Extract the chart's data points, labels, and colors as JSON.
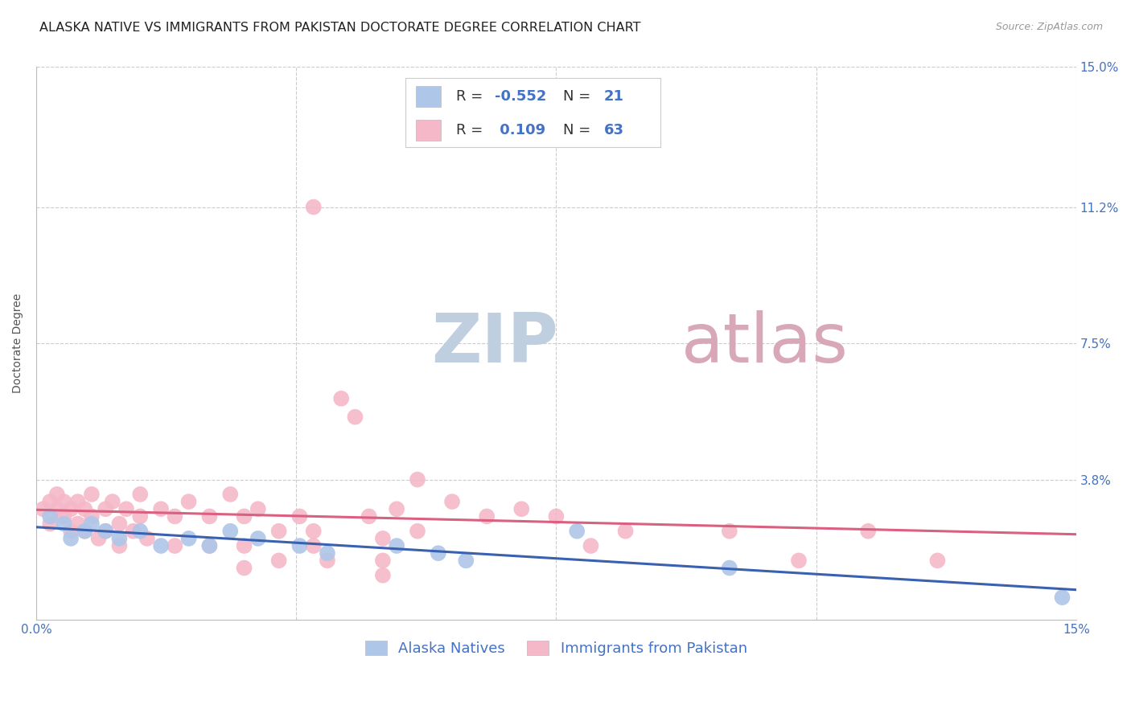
{
  "title": "ALASKA NATIVE VS IMMIGRANTS FROM PAKISTAN DOCTORATE DEGREE CORRELATION CHART",
  "source": "Source: ZipAtlas.com",
  "ylabel": "Doctorate Degree",
  "xlim": [
    0.0,
    0.15
  ],
  "ylim": [
    0.0,
    0.15
  ],
  "background_color": "#ffffff",
  "grid_color": "#cccccc",
  "alaska_color": "#aec6e8",
  "pakistan_color": "#f5b8c8",
  "alaska_line_color": "#3a60b0",
  "pakistan_line_color": "#d96080",
  "alaska_R": -0.552,
  "alaska_N": 21,
  "pakistan_R": 0.109,
  "pakistan_N": 63,
  "alaska_points": [
    [
      0.002,
      0.028
    ],
    [
      0.004,
      0.026
    ],
    [
      0.005,
      0.022
    ],
    [
      0.007,
      0.024
    ],
    [
      0.008,
      0.026
    ],
    [
      0.01,
      0.024
    ],
    [
      0.012,
      0.022
    ],
    [
      0.015,
      0.024
    ],
    [
      0.018,
      0.02
    ],
    [
      0.022,
      0.022
    ],
    [
      0.025,
      0.02
    ],
    [
      0.028,
      0.024
    ],
    [
      0.032,
      0.022
    ],
    [
      0.038,
      0.02
    ],
    [
      0.042,
      0.018
    ],
    [
      0.052,
      0.02
    ],
    [
      0.058,
      0.018
    ],
    [
      0.062,
      0.016
    ],
    [
      0.078,
      0.024
    ],
    [
      0.1,
      0.014
    ],
    [
      0.148,
      0.006
    ]
  ],
  "pakistan_points": [
    [
      0.001,
      0.03
    ],
    [
      0.002,
      0.032
    ],
    [
      0.002,
      0.026
    ],
    [
      0.003,
      0.034
    ],
    [
      0.003,
      0.03
    ],
    [
      0.004,
      0.028
    ],
    [
      0.004,
      0.032
    ],
    [
      0.005,
      0.03
    ],
    [
      0.005,
      0.024
    ],
    [
      0.006,
      0.032
    ],
    [
      0.006,
      0.026
    ],
    [
      0.007,
      0.03
    ],
    [
      0.007,
      0.024
    ],
    [
      0.008,
      0.034
    ],
    [
      0.008,
      0.028
    ],
    [
      0.009,
      0.022
    ],
    [
      0.01,
      0.03
    ],
    [
      0.01,
      0.024
    ],
    [
      0.011,
      0.032
    ],
    [
      0.012,
      0.026
    ],
    [
      0.012,
      0.02
    ],
    [
      0.013,
      0.03
    ],
    [
      0.014,
      0.024
    ],
    [
      0.015,
      0.034
    ],
    [
      0.015,
      0.028
    ],
    [
      0.016,
      0.022
    ],
    [
      0.018,
      0.03
    ],
    [
      0.02,
      0.028
    ],
    [
      0.02,
      0.02
    ],
    [
      0.022,
      0.032
    ],
    [
      0.025,
      0.028
    ],
    [
      0.025,
      0.02
    ],
    [
      0.028,
      0.034
    ],
    [
      0.03,
      0.028
    ],
    [
      0.03,
      0.02
    ],
    [
      0.03,
      0.014
    ],
    [
      0.032,
      0.03
    ],
    [
      0.035,
      0.024
    ],
    [
      0.035,
      0.016
    ],
    [
      0.038,
      0.028
    ],
    [
      0.04,
      0.024
    ],
    [
      0.04,
      0.02
    ],
    [
      0.04,
      0.112
    ],
    [
      0.042,
      0.016
    ],
    [
      0.044,
      0.06
    ],
    [
      0.046,
      0.055
    ],
    [
      0.048,
      0.028
    ],
    [
      0.05,
      0.022
    ],
    [
      0.05,
      0.016
    ],
    [
      0.05,
      0.012
    ],
    [
      0.052,
      0.03
    ],
    [
      0.055,
      0.038
    ],
    [
      0.055,
      0.024
    ],
    [
      0.06,
      0.032
    ],
    [
      0.065,
      0.028
    ],
    [
      0.07,
      0.03
    ],
    [
      0.075,
      0.028
    ],
    [
      0.08,
      0.02
    ],
    [
      0.085,
      0.024
    ],
    [
      0.1,
      0.024
    ],
    [
      0.11,
      0.016
    ],
    [
      0.12,
      0.024
    ],
    [
      0.13,
      0.016
    ]
  ],
  "title_fontsize": 11.5,
  "source_fontsize": 9,
  "axis_label_fontsize": 10,
  "tick_fontsize": 11,
  "stats_fontsize": 13,
  "legend_fontsize": 13,
  "watermark_zip_color": "#c0cfe0",
  "watermark_atlas_color": "#d8a8b8",
  "watermark_fontsize": 62
}
